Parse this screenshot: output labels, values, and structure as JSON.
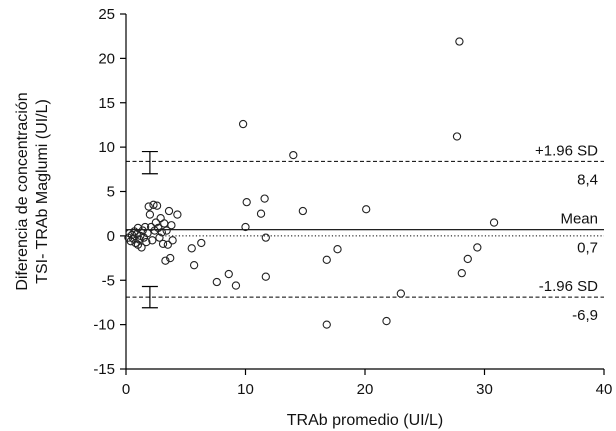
{
  "chart_data": {
    "type": "scatter",
    "title": "",
    "xlabel": "TRAb promedio (UI/L)",
    "ylabel_line1": "Diferencia de concentración",
    "ylabel_line2": "TSI- TRAb Maglumi (UI/L)",
    "xlim": [
      0,
      40
    ],
    "ylim": [
      -15,
      25
    ],
    "xticks": [
      0,
      10,
      20,
      30,
      40
    ],
    "yticks": [
      -15,
      -10,
      -5,
      0,
      5,
      10,
      15,
      20,
      25
    ],
    "grid": false,
    "reference_lines": [
      {
        "id": "upper",
        "style": "dashed",
        "y": 8.4,
        "label_top": "+1.96 SD",
        "label_bottom": "8,4"
      },
      {
        "id": "mean",
        "style": "solid",
        "y": 0.7,
        "label_top": "Mean",
        "label_bottom": "0,7"
      },
      {
        "id": "lower",
        "style": "dashed",
        "y": -6.9,
        "label_top": "-1.96 SD",
        "label_bottom": "-6,9"
      }
    ],
    "zero_line": {
      "style": "dotted",
      "y": 0
    },
    "error_bars": [
      {
        "x": 2,
        "center": 8.4,
        "low": 7.0,
        "high": 9.5
      },
      {
        "x": 2,
        "center": -6.9,
        "low": -8.1,
        "high": -5.7
      }
    ],
    "points": [
      {
        "x": 0.2,
        "y": -0.2
      },
      {
        "x": 0.3,
        "y": 0.3
      },
      {
        "x": 0.4,
        "y": -0.6
      },
      {
        "x": 0.5,
        "y": 0.1
      },
      {
        "x": 0.6,
        "y": -0.3
      },
      {
        "x": 0.7,
        "y": 0.5
      },
      {
        "x": 0.8,
        "y": -0.8
      },
      {
        "x": 0.9,
        "y": 0.2
      },
      {
        "x": 1.0,
        "y": -1.0
      },
      {
        "x": 1.0,
        "y": 0.9
      },
      {
        "x": 1.1,
        "y": -0.4
      },
      {
        "x": 1.2,
        "y": 0.0
      },
      {
        "x": 1.3,
        "y": -1.3
      },
      {
        "x": 1.4,
        "y": 0.6
      },
      {
        "x": 1.5,
        "y": -0.2
      },
      {
        "x": 1.6,
        "y": 1.0
      },
      {
        "x": 1.7,
        "y": -0.7
      },
      {
        "x": 1.8,
        "y": 0.3
      },
      {
        "x": 1.9,
        "y": 3.3
      },
      {
        "x": 2.0,
        "y": 2.4
      },
      {
        "x": 2.1,
        "y": 1.0
      },
      {
        "x": 2.2,
        "y": -0.5
      },
      {
        "x": 2.3,
        "y": 3.5
      },
      {
        "x": 2.4,
        "y": 0.6
      },
      {
        "x": 2.5,
        "y": 1.5
      },
      {
        "x": 2.6,
        "y": 3.4
      },
      {
        "x": 2.7,
        "y": 0.9
      },
      {
        "x": 2.8,
        "y": -0.2
      },
      {
        "x": 2.9,
        "y": 2.0
      },
      {
        "x": 3.0,
        "y": 0.4
      },
      {
        "x": 3.1,
        "y": -0.9
      },
      {
        "x": 3.2,
        "y": 1.4
      },
      {
        "x": 3.3,
        "y": -2.8
      },
      {
        "x": 3.4,
        "y": 0.6
      },
      {
        "x": 3.5,
        "y": -1.0
      },
      {
        "x": 3.6,
        "y": 2.8
      },
      {
        "x": 3.7,
        "y": -2.5
      },
      {
        "x": 3.8,
        "y": 1.2
      },
      {
        "x": 3.9,
        "y": -0.5
      },
      {
        "x": 4.3,
        "y": 2.4
      },
      {
        "x": 5.5,
        "y": -1.4
      },
      {
        "x": 5.7,
        "y": -3.3
      },
      {
        "x": 6.3,
        "y": -0.8
      },
      {
        "x": 7.6,
        "y": -5.2
      },
      {
        "x": 8.6,
        "y": -4.3
      },
      {
        "x": 9.2,
        "y": -5.6
      },
      {
        "x": 9.8,
        "y": 12.6
      },
      {
        "x": 10.0,
        "y": 1.0
      },
      {
        "x": 10.1,
        "y": 3.8
      },
      {
        "x": 11.3,
        "y": 2.5
      },
      {
        "x": 11.6,
        "y": 4.2
      },
      {
        "x": 11.7,
        "y": -0.2
      },
      {
        "x": 11.7,
        "y": -4.6
      },
      {
        "x": 14.0,
        "y": 9.1
      },
      {
        "x": 14.8,
        "y": 2.8
      },
      {
        "x": 16.8,
        "y": -2.7
      },
      {
        "x": 16.8,
        "y": -10.0
      },
      {
        "x": 17.7,
        "y": -1.5
      },
      {
        "x": 20.1,
        "y": 3.0
      },
      {
        "x": 21.8,
        "y": -9.6
      },
      {
        "x": 23.0,
        "y": -6.5
      },
      {
        "x": 27.7,
        "y": 11.2
      },
      {
        "x": 27.9,
        "y": 21.9
      },
      {
        "x": 28.1,
        "y": -4.2
      },
      {
        "x": 28.6,
        "y": -2.6
      },
      {
        "x": 29.4,
        "y": -1.3
      },
      {
        "x": 30.8,
        "y": 1.5
      }
    ]
  }
}
